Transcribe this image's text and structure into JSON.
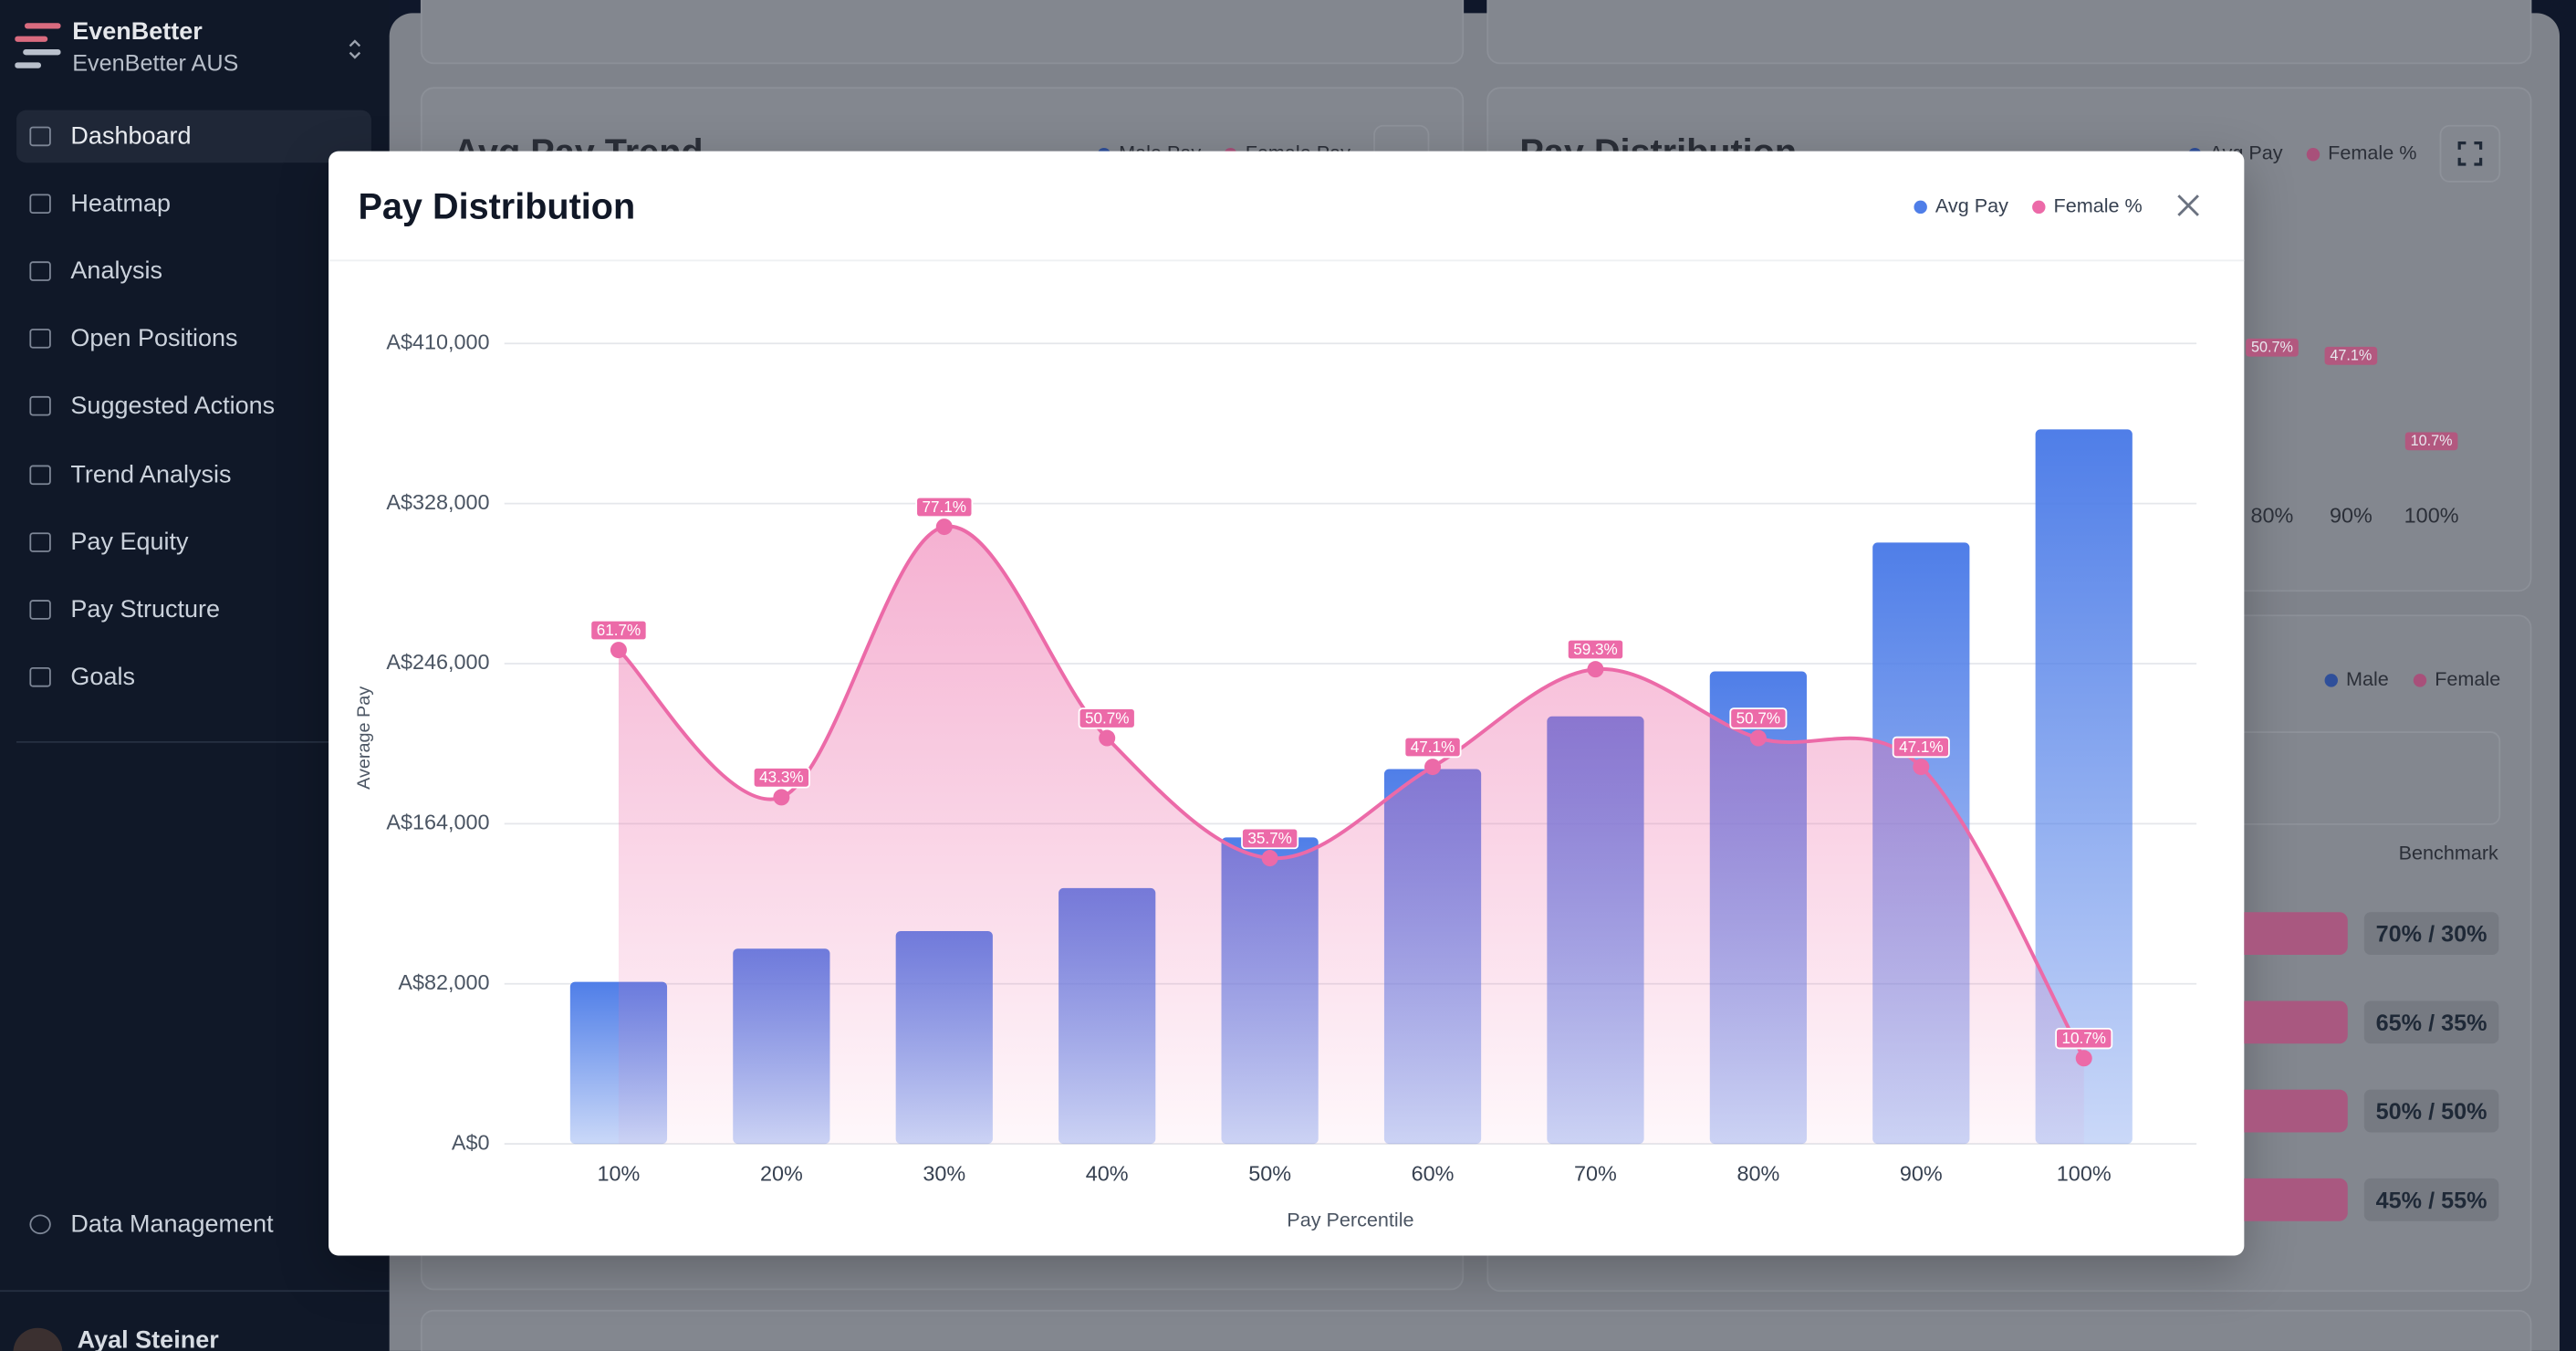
{
  "sidebar": {
    "brand": "EvenBetter",
    "org": "EvenBetter AUS",
    "nav": [
      "Dashboard",
      "Heatmap",
      "Analysis",
      "Open Positions",
      "Suggested Actions",
      "Trend Analysis",
      "Pay Equity",
      "Pay Structure",
      "Goals"
    ],
    "footer_nav": "Data Management",
    "user": "Ayal Steiner"
  },
  "background": {
    "trend_card": {
      "title": "Avg Pay Trend",
      "legend": [
        "Male Pay",
        "Female Pay"
      ]
    },
    "distribution_card": {
      "title": "Pay Distribution",
      "legend": [
        "Avg Pay",
        "Female %"
      ],
      "x_labels": [
        "80%",
        "90%",
        "100%"
      ],
      "point_labels": [
        "50.7%",
        "47.1%",
        "10.7%"
      ]
    },
    "gender_card": {
      "legend": [
        "Male",
        "Female"
      ],
      "column": "Benchmark",
      "ratios": [
        "70% / 30%",
        "65% / 35%",
        "50% / 50%",
        "45% / 55%"
      ]
    }
  },
  "chart_data": {
    "type": "bar",
    "title": "Pay Distribution",
    "x_label": "Pay Percentile",
    "y_label": "Average Pay",
    "categories": [
      "10%",
      "20%",
      "30%",
      "40%",
      "50%",
      "60%",
      "70%",
      "80%",
      "90%",
      "100%"
    ],
    "series": [
      {
        "name": "Avg Pay",
        "color": "#4f7ee8",
        "values": [
          83000,
          100000,
          109000,
          131000,
          157000,
          192000,
          219000,
          242000,
          308000,
          366000
        ]
      },
      {
        "name": "Female %",
        "color": "#ec6aa8",
        "axis": "y2",
        "values": [
          61.7,
          43.3,
          77.1,
          50.7,
          35.7,
          47.1,
          59.3,
          50.7,
          47.1,
          10.7
        ],
        "value_labels": [
          "61.7%",
          "43.3%",
          "77.1%",
          "50.7%",
          "35.7%",
          "47.1%",
          "59.3%",
          "50.7%",
          "47.1%",
          "10.7%"
        ]
      }
    ],
    "ylim": [
      0,
      410000
    ],
    "yticks": [
      {
        "value": 0,
        "label": "A$0"
      },
      {
        "value": 82000,
        "label": "A$82,000"
      },
      {
        "value": 164000,
        "label": "A$164,000"
      },
      {
        "value": 246000,
        "label": "A$246,000"
      },
      {
        "value": 328000,
        "label": "A$328,000"
      },
      {
        "value": 410000,
        "label": "A$410,000"
      }
    ],
    "y2lim": [
      0,
      100
    ],
    "grid": true
  }
}
